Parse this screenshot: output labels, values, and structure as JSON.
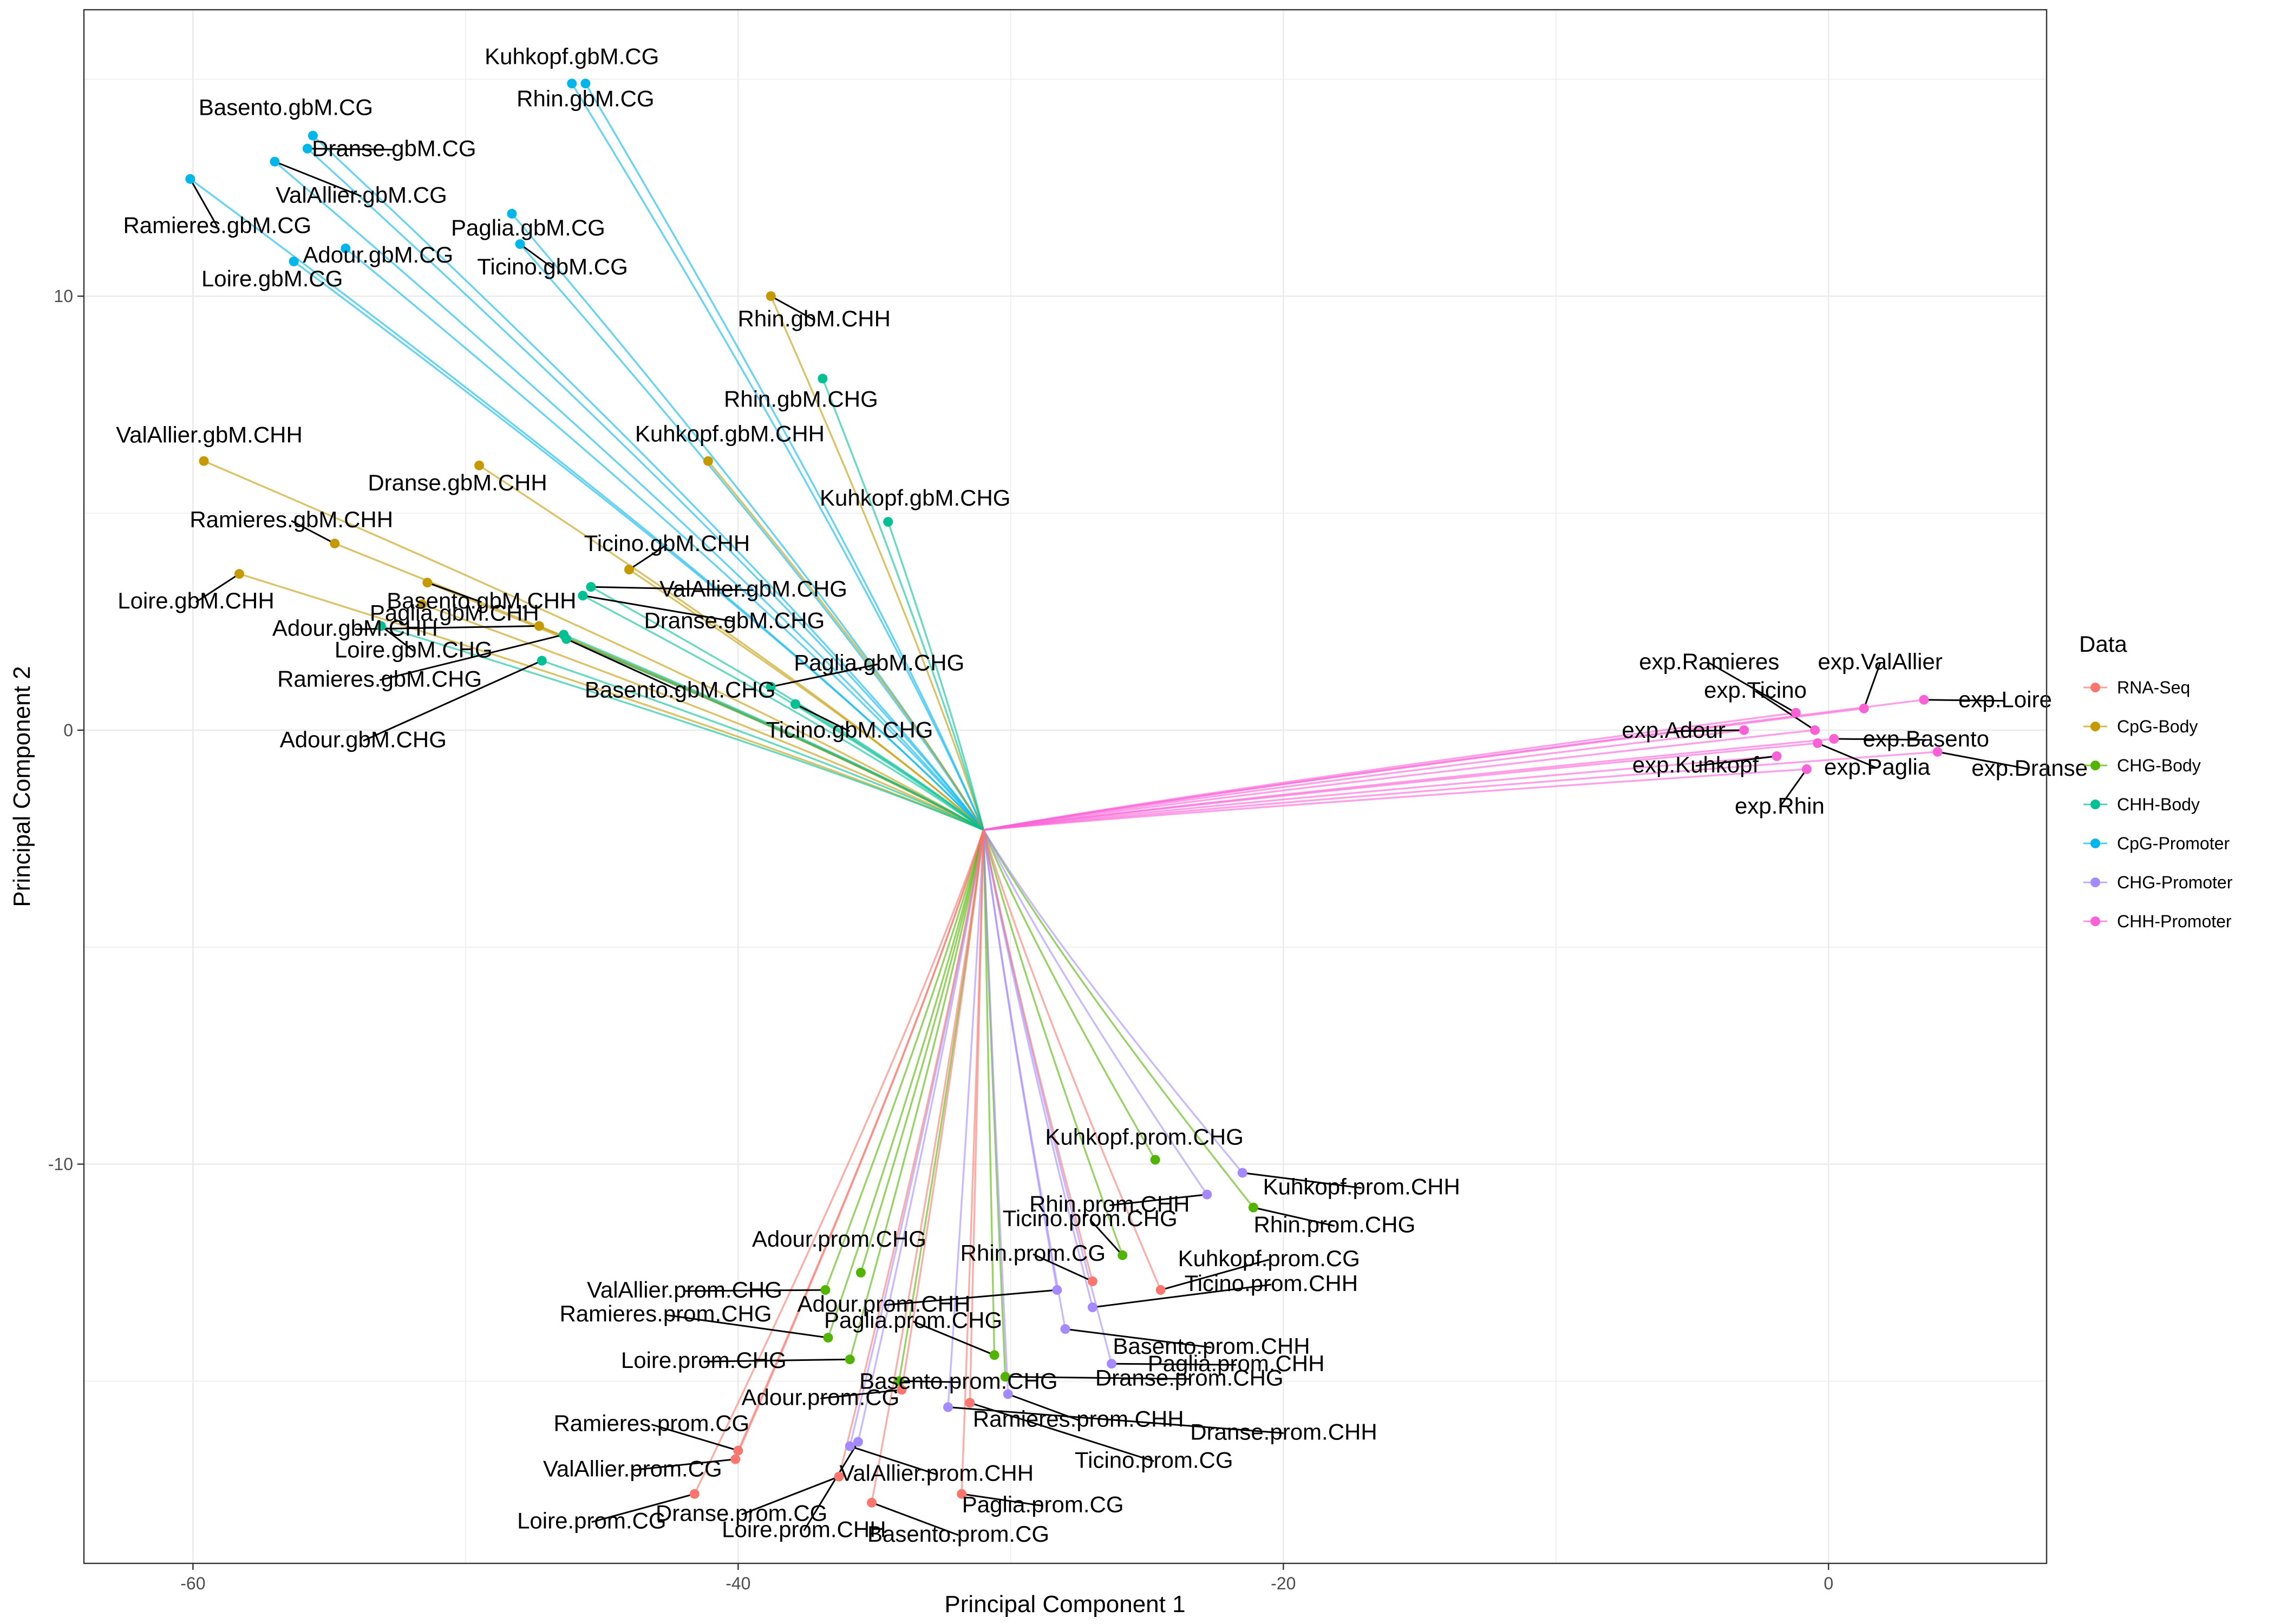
{
  "chart_data": {
    "type": "scatter",
    "xlabel": "Principal Component 1",
    "ylabel": "Principal Component 2",
    "xlim": [
      -64,
      8
    ],
    "ylim": [
      -19.2,
      16.6
    ],
    "x_ticks": [
      -60,
      -40,
      -20,
      0
    ],
    "y_ticks": [
      -10,
      0,
      10
    ],
    "grid": true,
    "center": [
      -31,
      -2.3
    ],
    "legend": {
      "title": "Data",
      "position": "right",
      "entries": [
        {
          "name": "RNA-Seq",
          "color": "#F8766D"
        },
        {
          "name": "CpG-Body",
          "color": "#C49A00"
        },
        {
          "name": "CHG-Body",
          "color": "#53B400"
        },
        {
          "name": "CHH-Body",
          "color": "#00C094"
        },
        {
          "name": "CpG-Promoter",
          "color": "#00B6EB"
        },
        {
          "name": "CHG-Promoter",
          "color": "#A58AFF"
        },
        {
          "name": "CHH-Promoter",
          "color": "#FB61D7"
        }
      ]
    },
    "series": [
      {
        "name": "CpG-Promoter",
        "color": "#00B6EB",
        "points": [
          {
            "label": "Kuhkopf.gbM.CG",
            "x": -46.1,
            "y": 14.9
          },
          {
            "label": "Rhin.gbM.CG",
            "x": -45.6,
            "y": 14.9
          },
          {
            "label": "Basento.gbM.CG",
            "x": -55.6,
            "y": 13.7
          },
          {
            "label": "Dranse.gbM.CG",
            "x": -55.8,
            "y": 13.4
          },
          {
            "label": "ValAllier.gbM.CG",
            "x": -57.0,
            "y": 13.1
          },
          {
            "label": "Ramieres.gbM.CG",
            "x": -60.1,
            "y": 12.7
          },
          {
            "label": "Paglia.gbM.CG",
            "x": -48.3,
            "y": 11.9
          },
          {
            "label": "Adour.gbM.CG",
            "x": -54.4,
            "y": 11.1
          },
          {
            "label": "Ticino.gbM.CG",
            "x": -48.0,
            "y": 11.2
          },
          {
            "label": "Loire.gbM.CG",
            "x": -56.3,
            "y": 10.8
          }
        ]
      },
      {
        "name": "CpG-Body",
        "color": "#C49A00",
        "points": [
          {
            "label": "Rhin.gbM.CHH",
            "x": -38.8,
            "y": 10.0
          },
          {
            "label": "ValAllier.gbM.CHH",
            "x": -59.6,
            "y": 6.2
          },
          {
            "label": "Dranse.gbM.CHH",
            "x": -49.5,
            "y": 6.1
          },
          {
            "label": "Kuhkopf.gbM.CHH",
            "x": -41.1,
            "y": 6.2
          },
          {
            "label": "Ramieres.gbM.CHH",
            "x": -54.8,
            "y": 4.3
          },
          {
            "label": "Loire.gbM.CHH",
            "x": -58.3,
            "y": 3.6
          },
          {
            "label": "Basento.gbM.CHH",
            "x": -51.4,
            "y": 3.4
          },
          {
            "label": "Ticino.gbM.CHH",
            "x": -44.0,
            "y": 3.7
          },
          {
            "label": "Paglia.gbM.CHH",
            "x": -51.6,
            "y": 2.9
          },
          {
            "label": "Adour.gbM.CHH",
            "x": -47.3,
            "y": 2.4
          }
        ]
      },
      {
        "name": "CHH-Body",
        "color": "#00C094",
        "points": [
          {
            "label": "Rhin.gbM.CHG",
            "x": -36.9,
            "y": 8.1
          },
          {
            "label": "Kuhkopf.gbM.CHG",
            "x": -34.5,
            "y": 4.8
          },
          {
            "label": "ValAllier.gbM.CHG",
            "x": -45.4,
            "y": 3.3
          },
          {
            "label": "Dranse.gbM.CHG",
            "x": -45.7,
            "y": 3.1
          },
          {
            "label": "Loire.gbM.CHG",
            "x": -53.1,
            "y": 2.4
          },
          {
            "label": "Ramieres.gbM.CHG",
            "x": -46.4,
            "y": 2.2
          },
          {
            "label": "Basento.gbM.CHG",
            "x": -46.3,
            "y": 2.1
          },
          {
            "label": "Adour.gbM.CHG",
            "x": -47.2,
            "y": 1.6
          },
          {
            "label": "Paglia.gbM.CHG",
            "x": -38.8,
            "y": 1.0
          },
          {
            "label": "Ticino.gbM.CHG",
            "x": -37.9,
            "y": 0.6
          }
        ]
      },
      {
        "name": "CHH-Promoter",
        "color": "#FB61D7",
        "points": [
          {
            "label": "exp.Ramieres",
            "x": -1.2,
            "y": 0.4
          },
          {
            "label": "exp.ValAllier",
            "x": 1.3,
            "y": 0.5
          },
          {
            "label": "exp.Loire",
            "x": 3.5,
            "y": 0.7
          },
          {
            "label": "exp.Ticino",
            "x": -0.5,
            "y": 0.0
          },
          {
            "label": "exp.Adour",
            "x": -3.1,
            "y": 0.0
          },
          {
            "label": "exp.Basento",
            "x": 0.2,
            "y": -0.2
          },
          {
            "label": "exp.Kuhkopf",
            "x": -1.9,
            "y": -0.6
          },
          {
            "label": "exp.Paglia",
            "x": -0.4,
            "y": -0.3
          },
          {
            "label": "exp.Dranse",
            "x": 4.0,
            "y": -0.5
          },
          {
            "label": "exp.Rhin",
            "x": -0.8,
            "y": -0.9
          }
        ]
      },
      {
        "name": "CHG-Body",
        "color": "#53B400",
        "points": [
          {
            "label": "Kuhkopf.prom.CHG",
            "x": -24.7,
            "y": -9.9
          },
          {
            "label": "Rhin.prom.CHG",
            "x": -21.1,
            "y": -11.0
          },
          {
            "label": "Ticino.prom.CHG",
            "x": -25.9,
            "y": -12.1
          },
          {
            "label": "Adour.prom.CHG",
            "x": -35.5,
            "y": -12.5
          },
          {
            "label": "ValAllier.prom.CHG",
            "x": -36.8,
            "y": -12.9
          },
          {
            "label": "Ramieres.prom.CHG",
            "x": -36.7,
            "y": -14.0
          },
          {
            "label": "Paglia.prom.CHG",
            "x": -30.6,
            "y": -14.4
          },
          {
            "label": "Loire.prom.CHG",
            "x": -35.9,
            "y": -14.5
          },
          {
            "label": "Basento.prom.CHG",
            "x": -34.1,
            "y": -15.0
          },
          {
            "label": "Dranse.prom.CHG",
            "x": -30.2,
            "y": -14.9
          }
        ]
      },
      {
        "name": "CHG-Promoter",
        "color": "#A58AFF",
        "points": [
          {
            "label": "Kuhkopf.prom.CHH",
            "x": -21.5,
            "y": -10.2
          },
          {
            "label": "Rhin.prom.CHH",
            "x": -22.8,
            "y": -10.7
          },
          {
            "label": "Adour.prom.CHH",
            "x": -28.3,
            "y": -12.9
          },
          {
            "label": "Basento.prom.CHH",
            "x": -28.0,
            "y": -13.8
          },
          {
            "label": "Paglia.prom.CHH",
            "x": -26.3,
            "y": -14.6
          },
          {
            "label": "Dranse.prom.CHH",
            "x": -32.3,
            "y": -15.6
          },
          {
            "label": "Ramieres.prom.CHH",
            "x": -30.1,
            "y": -15.3
          },
          {
            "label": "ValAllier.prom.CHH",
            "x": -35.9,
            "y": -16.5
          },
          {
            "label": "Loire.prom.CHH",
            "x": -35.6,
            "y": -16.4
          },
          {
            "label": "Ticino.prom.CHH",
            "x": -27.0,
            "y": -13.3
          }
        ]
      },
      {
        "name": "RNA-Seq",
        "color": "#F8766D",
        "points": [
          {
            "label": "Rhin.prom.CG",
            "x": -27.0,
            "y": -12.7
          },
          {
            "label": "Kuhkopf.prom.CG",
            "x": -24.5,
            "y": -12.9
          },
          {
            "label": "Ticino.prom.CG",
            "x": -31.5,
            "y": -15.5
          },
          {
            "label": "Adour.prom.CG",
            "x": -34.0,
            "y": -15.2
          },
          {
            "label": "Ramieres.prom.CG",
            "x": -40.0,
            "y": -16.6
          },
          {
            "label": "ValAllier.prom.CG",
            "x": -40.1,
            "y": -16.8
          },
          {
            "label": "Dranse.prom.CG",
            "x": -36.3,
            "y": -17.2
          },
          {
            "label": "Loire.prom.CG",
            "x": -41.6,
            "y": -17.6
          },
          {
            "label": "Basento.prom.CG",
            "x": -35.1,
            "y": -17.8
          },
          {
            "label": "Paglia.prom.CG",
            "x": -31.8,
            "y": -17.6
          }
        ]
      }
    ]
  }
}
